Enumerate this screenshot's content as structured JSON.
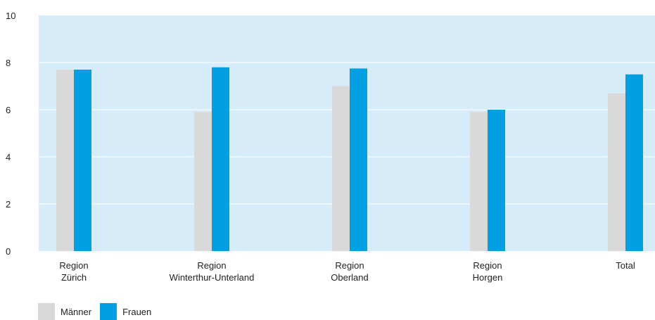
{
  "chart_data": {
    "type": "bar",
    "categories": [
      [
        "Region",
        "Zürich"
      ],
      [
        "Region",
        "Winterthur-Unterland"
      ],
      [
        "Region",
        "Oberland"
      ],
      [
        "Region",
        "Horgen"
      ],
      [
        "Total"
      ]
    ],
    "series": [
      {
        "name": "Männer",
        "color": "#d9d9d9",
        "values": [
          7.7,
          5.9,
          7.0,
          5.9,
          6.7
        ]
      },
      {
        "name": "Frauen",
        "color": "#00a0e3",
        "values": [
          7.7,
          7.8,
          7.75,
          6.0,
          7.5
        ]
      }
    ],
    "ylim": [
      0,
      10
    ],
    "yticks": [
      0,
      2,
      4,
      6,
      8,
      10
    ],
    "plot_background": "#d6edf9",
    "grid": true,
    "legend_position": "bottom-left"
  }
}
